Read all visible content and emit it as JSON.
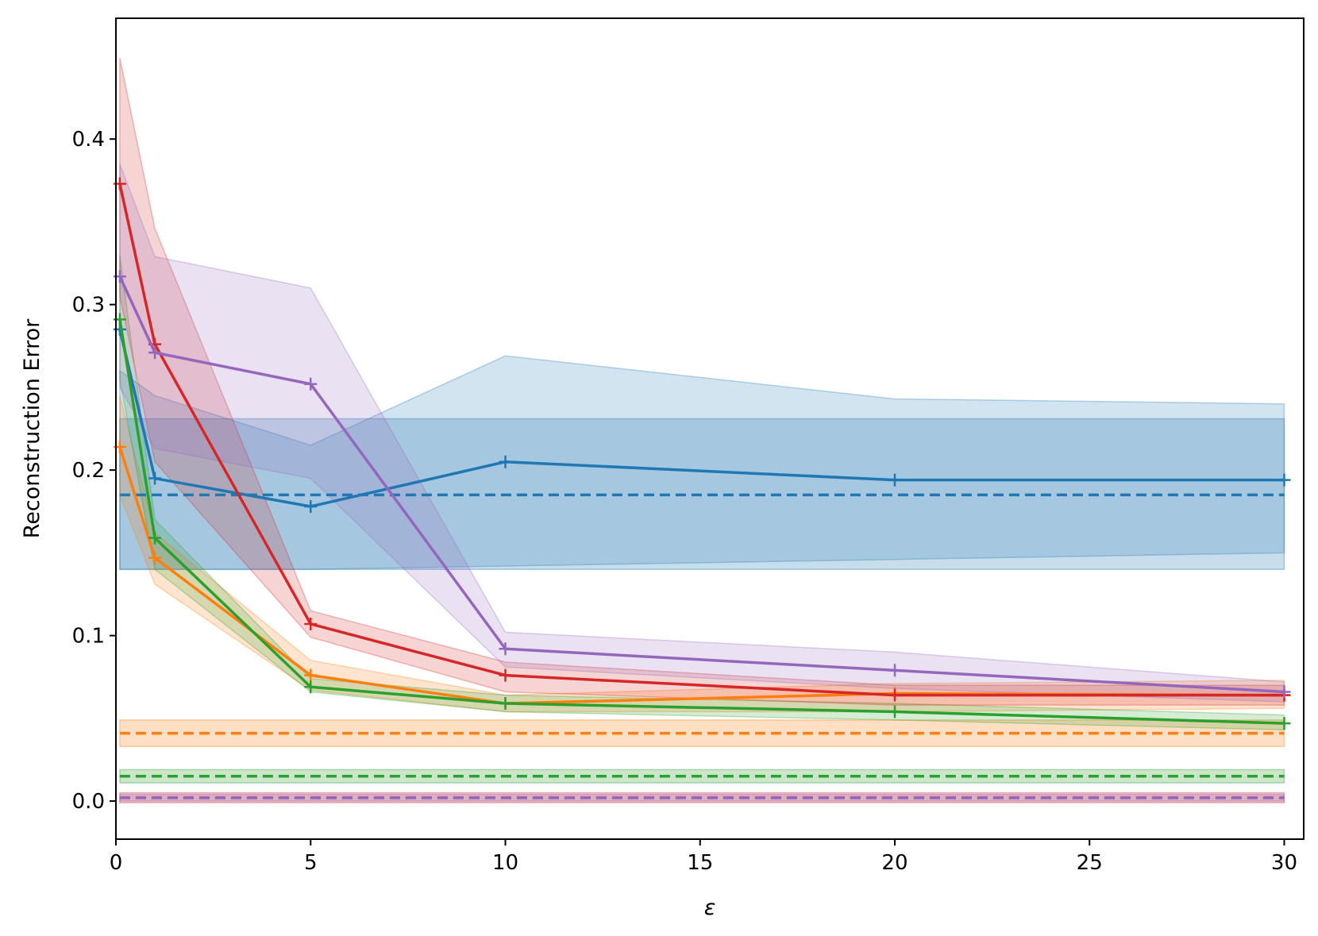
{
  "chart_data": {
    "type": "line",
    "title": "",
    "xlabel": "ε",
    "ylabel": "Reconstruction Error",
    "xlim": [
      0,
      30.5
    ],
    "ylim": [
      -0.023,
      0.473
    ],
    "xticks": [
      0,
      5,
      10,
      15,
      20,
      25,
      30
    ],
    "xtick_labels": [
      "0",
      "5",
      "10",
      "15",
      "20",
      "25",
      "30"
    ],
    "yticks": [
      0.0,
      0.1,
      0.2,
      0.3,
      0.4
    ],
    "ytick_labels": [
      "0.0",
      "0.1",
      "0.2",
      "0.3",
      "0.4"
    ],
    "grid": false,
    "x": [
      0.1,
      1,
      5,
      10,
      20,
      30
    ],
    "series": [
      {
        "name": "blue",
        "color": "#1f77b4",
        "values": [
          0.285,
          0.195,
          0.178,
          0.205,
          0.194,
          0.194
        ],
        "lower": [
          0.14,
          0.14,
          0.14,
          0.142,
          0.146,
          0.15
        ],
        "upper": [
          0.26,
          0.245,
          0.215,
          0.269,
          0.243,
          0.24
        ],
        "baseline": 0.185,
        "baseline_lower": 0.14,
        "baseline_upper": 0.231
      },
      {
        "name": "orange",
        "color": "#ff7f0e",
        "values": [
          0.214,
          0.147,
          0.076,
          0.059,
          0.065,
          0.064
        ],
        "lower": [
          0.185,
          0.131,
          0.067,
          0.054,
          0.054,
          0.056
        ],
        "upper": [
          0.245,
          0.162,
          0.085,
          0.064,
          0.071,
          0.073
        ],
        "baseline": 0.041,
        "baseline_lower": 0.033,
        "baseline_upper": 0.049
      },
      {
        "name": "green",
        "color": "#2ca02c",
        "values": [
          0.291,
          0.159,
          0.069,
          0.059,
          0.054,
          0.047
        ],
        "lower": [
          0.255,
          0.14,
          0.066,
          0.054,
          0.049,
          0.043
        ],
        "upper": [
          0.33,
          0.17,
          0.074,
          0.064,
          0.059,
          0.052
        ],
        "baseline": 0.015,
        "baseline_lower": 0.011,
        "baseline_upper": 0.019
      },
      {
        "name": "red",
        "color": "#d62728",
        "values": [
          0.373,
          0.276,
          0.107,
          0.076,
          0.064,
          0.064
        ],
        "lower": [
          0.305,
          0.205,
          0.099,
          0.066,
          0.058,
          0.058
        ],
        "upper": [
          0.449,
          0.346,
          0.115,
          0.084,
          0.07,
          0.07
        ],
        "baseline": 0.002,
        "baseline_lower": -0.001,
        "baseline_upper": 0.005
      },
      {
        "name": "purple",
        "color": "#9467bd",
        "values": [
          0.317,
          0.271,
          0.252,
          0.092,
          0.079,
          0.066
        ],
        "lower": [
          0.25,
          0.213,
          0.195,
          0.081,
          0.068,
          0.06
        ],
        "upper": [
          0.385,
          0.329,
          0.31,
          0.102,
          0.09,
          0.072
        ],
        "baseline": 0.002,
        "baseline_lower": 0.0,
        "baseline_upper": 0.004
      }
    ]
  }
}
